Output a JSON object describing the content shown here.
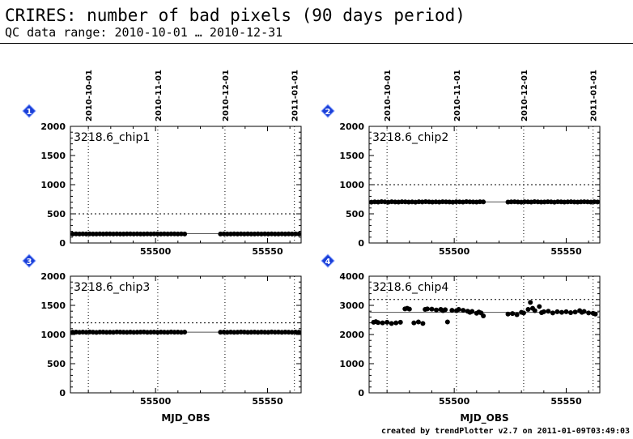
{
  "header": {
    "title": "CRIRES: number of bad pixels (90 days period)",
    "subtitle": "QC data range: 2010-10-01 … 2010-12-31"
  },
  "footer": {
    "text": "created by trendPlotter v2.7 on 2011-01-09T03:49:03"
  },
  "colors": {
    "marker_badge": "#1a3fd8",
    "points": "#000000",
    "axis": "#000000"
  },
  "chart_data": [
    {
      "type": "scatter",
      "badge": "1",
      "label": "3218.6_chip1",
      "x_range": [
        55462,
        55565
      ],
      "ylim": [
        0,
        2000
      ],
      "yticks": [
        0,
        500,
        1000,
        1500,
        2000
      ],
      "xticks": [
        55500,
        55550
      ],
      "date_ticks": [
        {
          "label": "2010-10-01",
          "mjd": 55470
        },
        {
          "label": "2010-11-01",
          "mjd": 55501
        },
        {
          "label": "2010-12-01",
          "mjd": 55531
        },
        {
          "label": "2011-01-01",
          "mjd": 55562
        }
      ],
      "reference_line": 160,
      "threshold_line": 500,
      "segments": [
        {
          "x_start": 55463,
          "x_end": 55513,
          "count": 34,
          "y": [
            155,
            156,
            154,
            157,
            155,
            156,
            155,
            154,
            156,
            155,
            157,
            156,
            155,
            156,
            154,
            155,
            156,
            157,
            155,
            156,
            155,
            154,
            156,
            155,
            156,
            157,
            155,
            156,
            155,
            156,
            157,
            155,
            156,
            155
          ]
        },
        {
          "x_start": 55529,
          "x_end": 55564,
          "count": 24,
          "y": [
            155,
            156,
            154,
            155,
            156,
            155,
            157,
            155,
            156,
            154,
            155,
            156,
            155,
            156,
            155,
            157,
            155,
            154,
            156,
            155,
            156,
            155,
            156,
            155
          ]
        }
      ],
      "xlabel": ""
    },
    {
      "type": "scatter",
      "badge": "2",
      "label": "3218.6_chip2",
      "x_range": [
        55462,
        55565
      ],
      "ylim": [
        0,
        2000
      ],
      "yticks": [
        0,
        500,
        1000,
        1500,
        2000
      ],
      "xticks": [
        55500,
        55550
      ],
      "date_ticks": [
        {
          "label": "2010-10-01",
          "mjd": 55470
        },
        {
          "label": "2010-11-01",
          "mjd": 55501
        },
        {
          "label": "2010-12-01",
          "mjd": 55531
        },
        {
          "label": "2011-01-01",
          "mjd": 55562
        }
      ],
      "reference_line": 705,
      "threshold_line": 1000,
      "segments": [
        {
          "x_start": 55463,
          "x_end": 55513,
          "count": 34,
          "y": [
            700,
            705,
            702,
            708,
            704,
            700,
            706,
            703,
            701,
            707,
            705,
            702,
            704,
            700,
            706,
            703,
            708,
            705,
            701,
            704,
            702,
            707,
            705,
            703,
            700,
            706,
            704,
            702,
            708,
            705,
            703,
            701,
            706,
            704
          ]
        },
        {
          "x_start": 55524,
          "x_end": 55564,
          "count": 28,
          "y": [
            702,
            705,
            707,
            703,
            700,
            706,
            704,
            702,
            708,
            705,
            701,
            703,
            706,
            704,
            700,
            707,
            705,
            702,
            704,
            706,
            703,
            701,
            705,
            707,
            704,
            702,
            706,
            703
          ]
        }
      ],
      "xlabel": ""
    },
    {
      "type": "scatter",
      "badge": "3",
      "label": "3218.6_chip3",
      "x_range": [
        55462,
        55565
      ],
      "ylim": [
        0,
        2000
      ],
      "yticks": [
        0,
        500,
        1000,
        1500,
        2000
      ],
      "xticks": [
        55500,
        55550
      ],
      "date_ticks": [
        {
          "label": "2010-10-01",
          "mjd": 55470
        },
        {
          "label": "2010-11-01",
          "mjd": 55501
        },
        {
          "label": "2010-12-01",
          "mjd": 55531
        },
        {
          "label": "2011-01-01",
          "mjd": 55562
        }
      ],
      "reference_line": 1040,
      "threshold_line": 1200,
      "segments": [
        {
          "x_start": 55463,
          "x_end": 55513,
          "count": 34,
          "y": [
            1040,
            1042,
            1038,
            1041,
            1039,
            1043,
            1040,
            1037,
            1041,
            1042,
            1039,
            1040,
            1038,
            1043,
            1041,
            1040,
            1039,
            1042,
            1038,
            1040,
            1041,
            1043,
            1039,
            1040,
            1042,
            1038,
            1041,
            1040,
            1039,
            1043,
            1040,
            1041,
            1038,
            1042
          ]
        },
        {
          "x_start": 55529,
          "x_end": 55564,
          "count": 24,
          "y": [
            1040,
            1041,
            1039,
            1042,
            1038,
            1040,
            1043,
            1041,
            1039,
            1040,
            1042,
            1038,
            1041,
            1040,
            1039,
            1043,
            1040,
            1041,
            1038,
            1042,
            1040,
            1039,
            1041,
            1040
          ]
        }
      ],
      "xlabel": "MJD_OBS"
    },
    {
      "type": "scatter",
      "badge": "4",
      "label": "3218.6_chip4",
      "x_range": [
        55462,
        55565
      ],
      "ylim": [
        0,
        4000
      ],
      "yticks": [
        0,
        1000,
        2000,
        3000,
        4000
      ],
      "xticks": [
        55500,
        55550
      ],
      "date_ticks": [
        {
          "label": "2010-10-01",
          "mjd": 55470
        },
        {
          "label": "2010-11-01",
          "mjd": 55501
        },
        {
          "label": "2010-12-01",
          "mjd": 55531
        },
        {
          "label": "2011-01-01",
          "mjd": 55562
        }
      ],
      "reference_line": 2760,
      "threshold_line": 3200,
      "points": {
        "x": [
          55464,
          55465,
          55466,
          55468,
          55470,
          55472,
          55474,
          55476,
          55478,
          55479,
          55480,
          55482,
          55484,
          55486,
          55487,
          55488,
          55490,
          55492,
          55494,
          55495,
          55496,
          55497,
          55499,
          55501,
          55502,
          55504,
          55506,
          55507,
          55508,
          55510,
          55511,
          55512,
          55513,
          55524,
          55526,
          55528,
          55530,
          55531,
          55533,
          55534,
          55535,
          55536,
          55538,
          55539,
          55540,
          55542,
          55544,
          55546,
          55548,
          55550,
          55552,
          55554,
          55556,
          55557,
          55558,
          55560,
          55562,
          55563
        ],
        "y": [
          2420,
          2440,
          2410,
          2400,
          2420,
          2380,
          2400,
          2420,
          2880,
          2900,
          2870,
          2400,
          2430,
          2380,
          2860,
          2880,
          2870,
          2840,
          2860,
          2820,
          2850,
          2430,
          2830,
          2820,
          2860,
          2830,
          2800,
          2760,
          2790,
          2730,
          2770,
          2740,
          2640,
          2700,
          2720,
          2680,
          2760,
          2740,
          2860,
          3100,
          2900,
          2820,
          2960,
          2750,
          2780,
          2800,
          2740,
          2780,
          2760,
          2780,
          2750,
          2770,
          2820,
          2760,
          2790,
          2740,
          2730,
          2700
        ]
      },
      "xlabel": "MJD_OBS"
    }
  ]
}
